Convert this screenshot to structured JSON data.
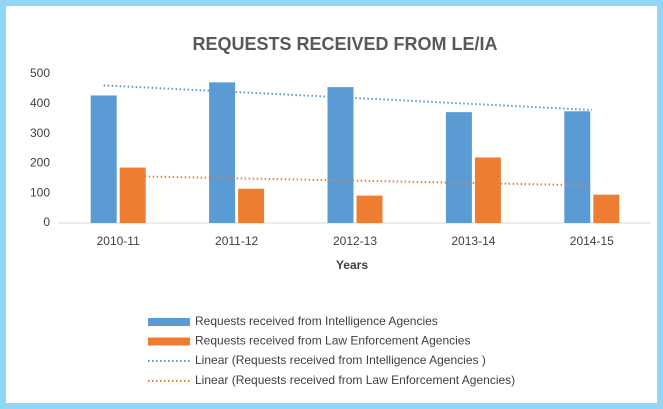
{
  "chart_data": {
    "type": "bar",
    "title": "REQUESTS RECEIVED FROM LE/IA",
    "x_label": "Years",
    "categories": [
      "2010-11",
      "2011-12",
      "2012-13",
      "2013-14",
      "2014-15"
    ],
    "series": [
      {
        "name": "Requests received from  Intelligence Agencies",
        "color": "#5b9bd5",
        "values": [
          428,
          472,
          456,
          372,
          375
        ],
        "trendline": "Linear (Requests received from  Intelligence Agencies )"
      },
      {
        "name": "Requests received from Law Enforcement Agencies",
        "color": "#ed7d31",
        "values": [
          186,
          115,
          92,
          220,
          95
        ],
        "trendline": "Linear (Requests received from Law Enforcement Agencies)"
      }
    ],
    "ylim": [
      0,
      500
    ],
    "yticks": [
      0,
      100,
      200,
      300,
      400,
      500
    ],
    "grid": false,
    "legend": "bottom"
  }
}
